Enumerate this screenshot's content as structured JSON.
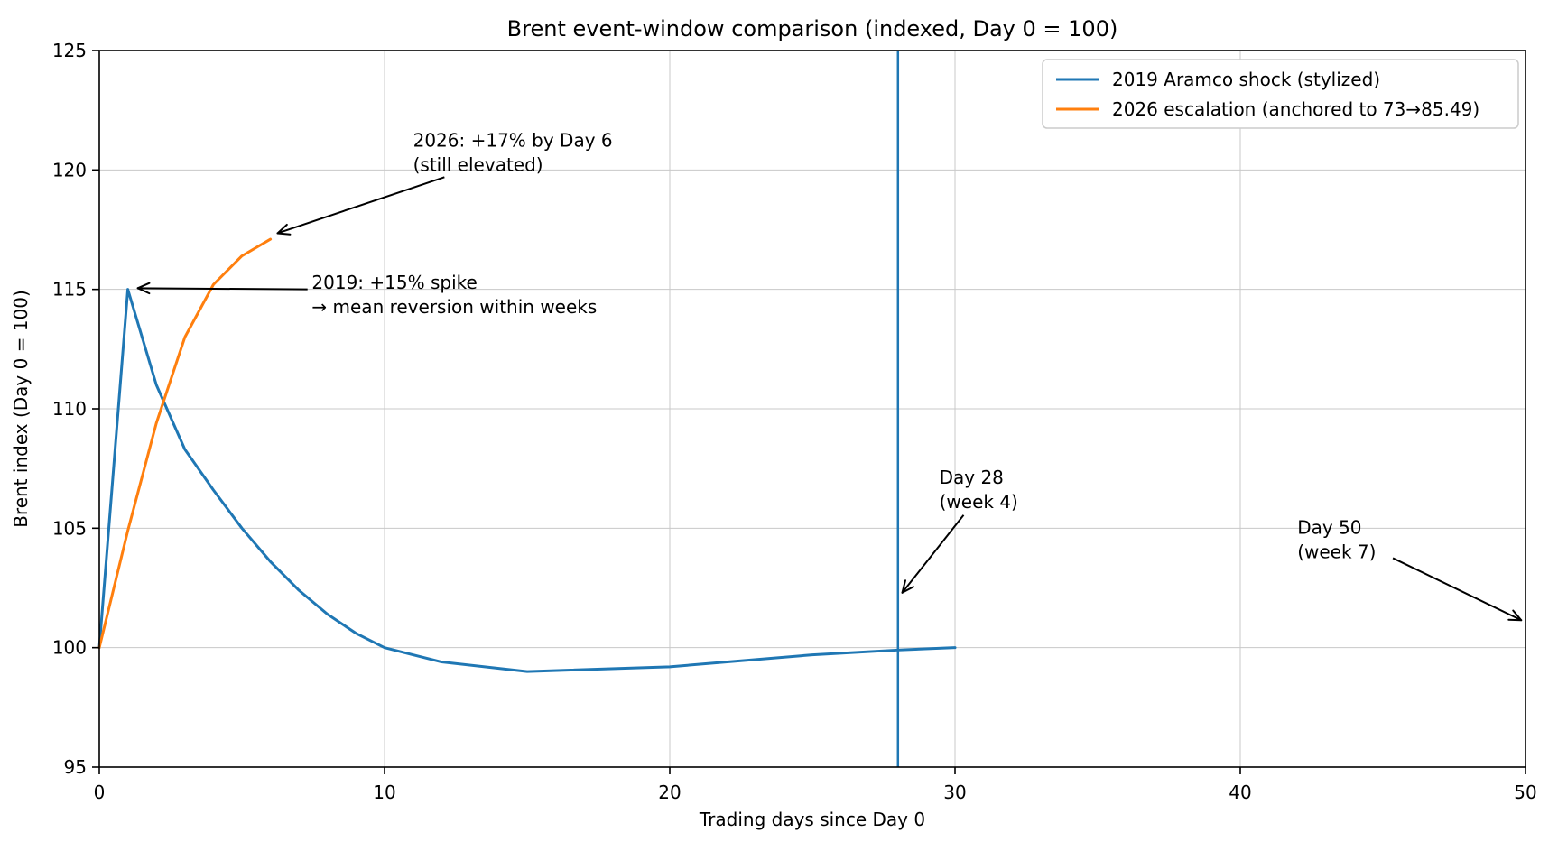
{
  "chart_data": {
    "type": "line",
    "title": "Brent event-window comparison (indexed, Day 0 = 100)",
    "xlabel": "Trading days since Day 0",
    "ylabel": "Brent index (Day 0 = 100)",
    "xlim": [
      0,
      50
    ],
    "ylim": [
      95,
      125
    ],
    "xticks": [
      0,
      10,
      20,
      30,
      40,
      50
    ],
    "yticks": [
      95,
      100,
      105,
      110,
      115,
      120,
      125
    ],
    "grid": true,
    "grid_color": "#c8c8c8",
    "legend_position": "upper right",
    "series": [
      {
        "name": "2019 Aramco shock (stylized)",
        "color": "#1f77b4",
        "x": [
          0,
          1,
          2,
          3,
          4,
          5,
          6,
          7,
          8,
          9,
          10,
          12,
          15,
          20,
          25,
          28,
          30
        ],
        "y": [
          100,
          115,
          111,
          108.3,
          106.6,
          105.0,
          103.6,
          102.4,
          101.4,
          100.6,
          100.0,
          99.4,
          99.0,
          99.2,
          99.7,
          99.9,
          100.0
        ]
      },
      {
        "name": "2026 escalation (anchored to 73→85.49)",
        "color": "#ff7f0e",
        "x": [
          0,
          1,
          2,
          3,
          4,
          5,
          6
        ],
        "y": [
          100,
          104.9,
          109.4,
          113.0,
          115.2,
          116.4,
          117.1
        ]
      }
    ],
    "vline": {
      "x": 28,
      "color": "#1f77b4"
    },
    "annotations": [
      {
        "lines": [
          "2026: +17% by Day 6",
          "(still elevated)"
        ],
        "text_xy": [
          11.0,
          121.8
        ],
        "arrow_from": [
          12.1,
          119.7
        ],
        "arrow_to": [
          6.25,
          117.35
        ]
      },
      {
        "lines": [
          "2019: +15% spike",
          "→ mean reversion within weeks"
        ],
        "text_xy": [
          7.45,
          115.85
        ],
        "arrow_from": [
          7.3,
          115.0
        ],
        "arrow_to": [
          1.35,
          115.05
        ]
      },
      {
        "lines": [
          "Day 28",
          "(week 4)"
        ],
        "text_xy": [
          29.45,
          107.7
        ],
        "arrow_from": [
          30.3,
          105.55
        ],
        "arrow_to": [
          28.15,
          102.3
        ]
      },
      {
        "lines": [
          "Day 50",
          "(week 7)"
        ],
        "text_xy": [
          42.0,
          105.6
        ],
        "arrow_from": [
          45.35,
          103.75
        ],
        "arrow_to": [
          49.85,
          101.15
        ]
      }
    ]
  }
}
